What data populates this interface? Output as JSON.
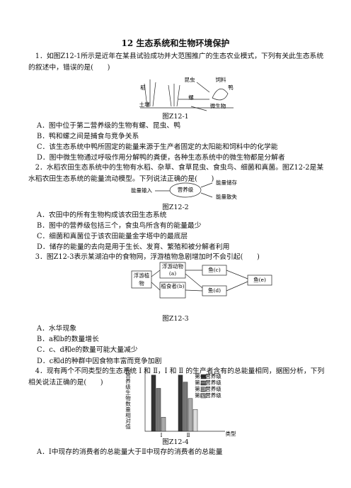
{
  "title": "12 生态系统和生物环境保护",
  "questions": [
    {
      "stem": "1．如图Z12-1所示是近年在某县试验成功并大范围推广的生态农业模式，下列有关此生态系统的叙述中，错误的是(　　)",
      "figure": {
        "labels": [
          "昆虫",
          "饲料",
          "鸭",
          "稻",
          "螺",
          "土壤",
          "微生物"
        ]
      },
      "caption": "图Z12-1",
      "options": [
        "A．图中位于第二营养级的生物有螺、昆虫、鸭",
        "B．鸭和螺之间是捕食与竞争关系",
        "C．该生态系统中鸭所固定的能量来源于生产者固定的太阳能和饲料中的化学能",
        "D．图中微生物通过呼吸作用分解鸭的粪便，各种生态系统中的微生物都是分解者"
      ]
    },
    {
      "stem": "2．水稻农田生态系统中的生物有水稻、杂草、食草昆虫、食虫鸟、细菌和真菌。图Z12-2是某水稻农田生态系统的能量流动模型。下列说法正确的是(　　)",
      "figure": {
        "input": "能量输入",
        "level": "营养级",
        "store": "能量储存",
        "loss": "能量散失"
      },
      "caption": "图Z12-2",
      "options": [
        "A．农田中的所有生物构成该农田生态系统",
        "B．图中的营养级包括三个，食虫鸟所含有的能量最少",
        "C．细菌和真菌位于该农田能量金字塔中的最底层",
        "D．储存的能量的去向是用于生长、发育、繁殖和被分解者利用"
      ]
    },
    {
      "stem": "3．图Z12-3表示某湖泊中的食物网，浮游植物急剧增加时不会引起(　　)",
      "figure": {
        "plant": "浮游植物",
        "zoo": "浮游动物(a)",
        "herb": "植食者(b)",
        "c": "鱼(c)",
        "d": "鱼(d)",
        "e": "鱼(e)"
      },
      "caption": "图Z12-3",
      "options": [
        "A．水华现象",
        "B．a和b的数量增长",
        "C．c、d和e的数量可能大量减少",
        "D．c和d的种群中因食物丰富而竞争加剧"
      ]
    },
    {
      "stem": "4．现有两个不同类型的生态系统 Ⅰ 和 Ⅱ，Ⅰ 和 Ⅱ 的生产者含有的总能量相同，据图分析，下列相关说法正确的是(　　)",
      "figure": {
        "type": "bar",
        "y_label": "各营养级生物数量相对值",
        "x_label": "类型",
        "categories": [
          "Ⅰ",
          "Ⅱ"
        ],
        "ylim": [
          0,
          80
        ],
        "series": [
          {
            "name": "第一营养级",
            "color": "#333333",
            "values": [
              72,
              72
            ]
          },
          {
            "name": "第二营养级",
            "color": "#777777",
            "values": [
              55,
              63
            ]
          },
          {
            "name": "第三营养级",
            "color": "#aaaaaa",
            "values": [
              18,
              42
            ]
          },
          {
            "name": "第四营养级",
            "color": "#dddddd",
            "values": [
              null,
              28
            ]
          }
        ]
      },
      "caption": "图Z12-4",
      "options": [
        "A．Ⅰ中现存的消费者的总能量大于Ⅱ中现存的消费者的总能量"
      ]
    }
  ]
}
